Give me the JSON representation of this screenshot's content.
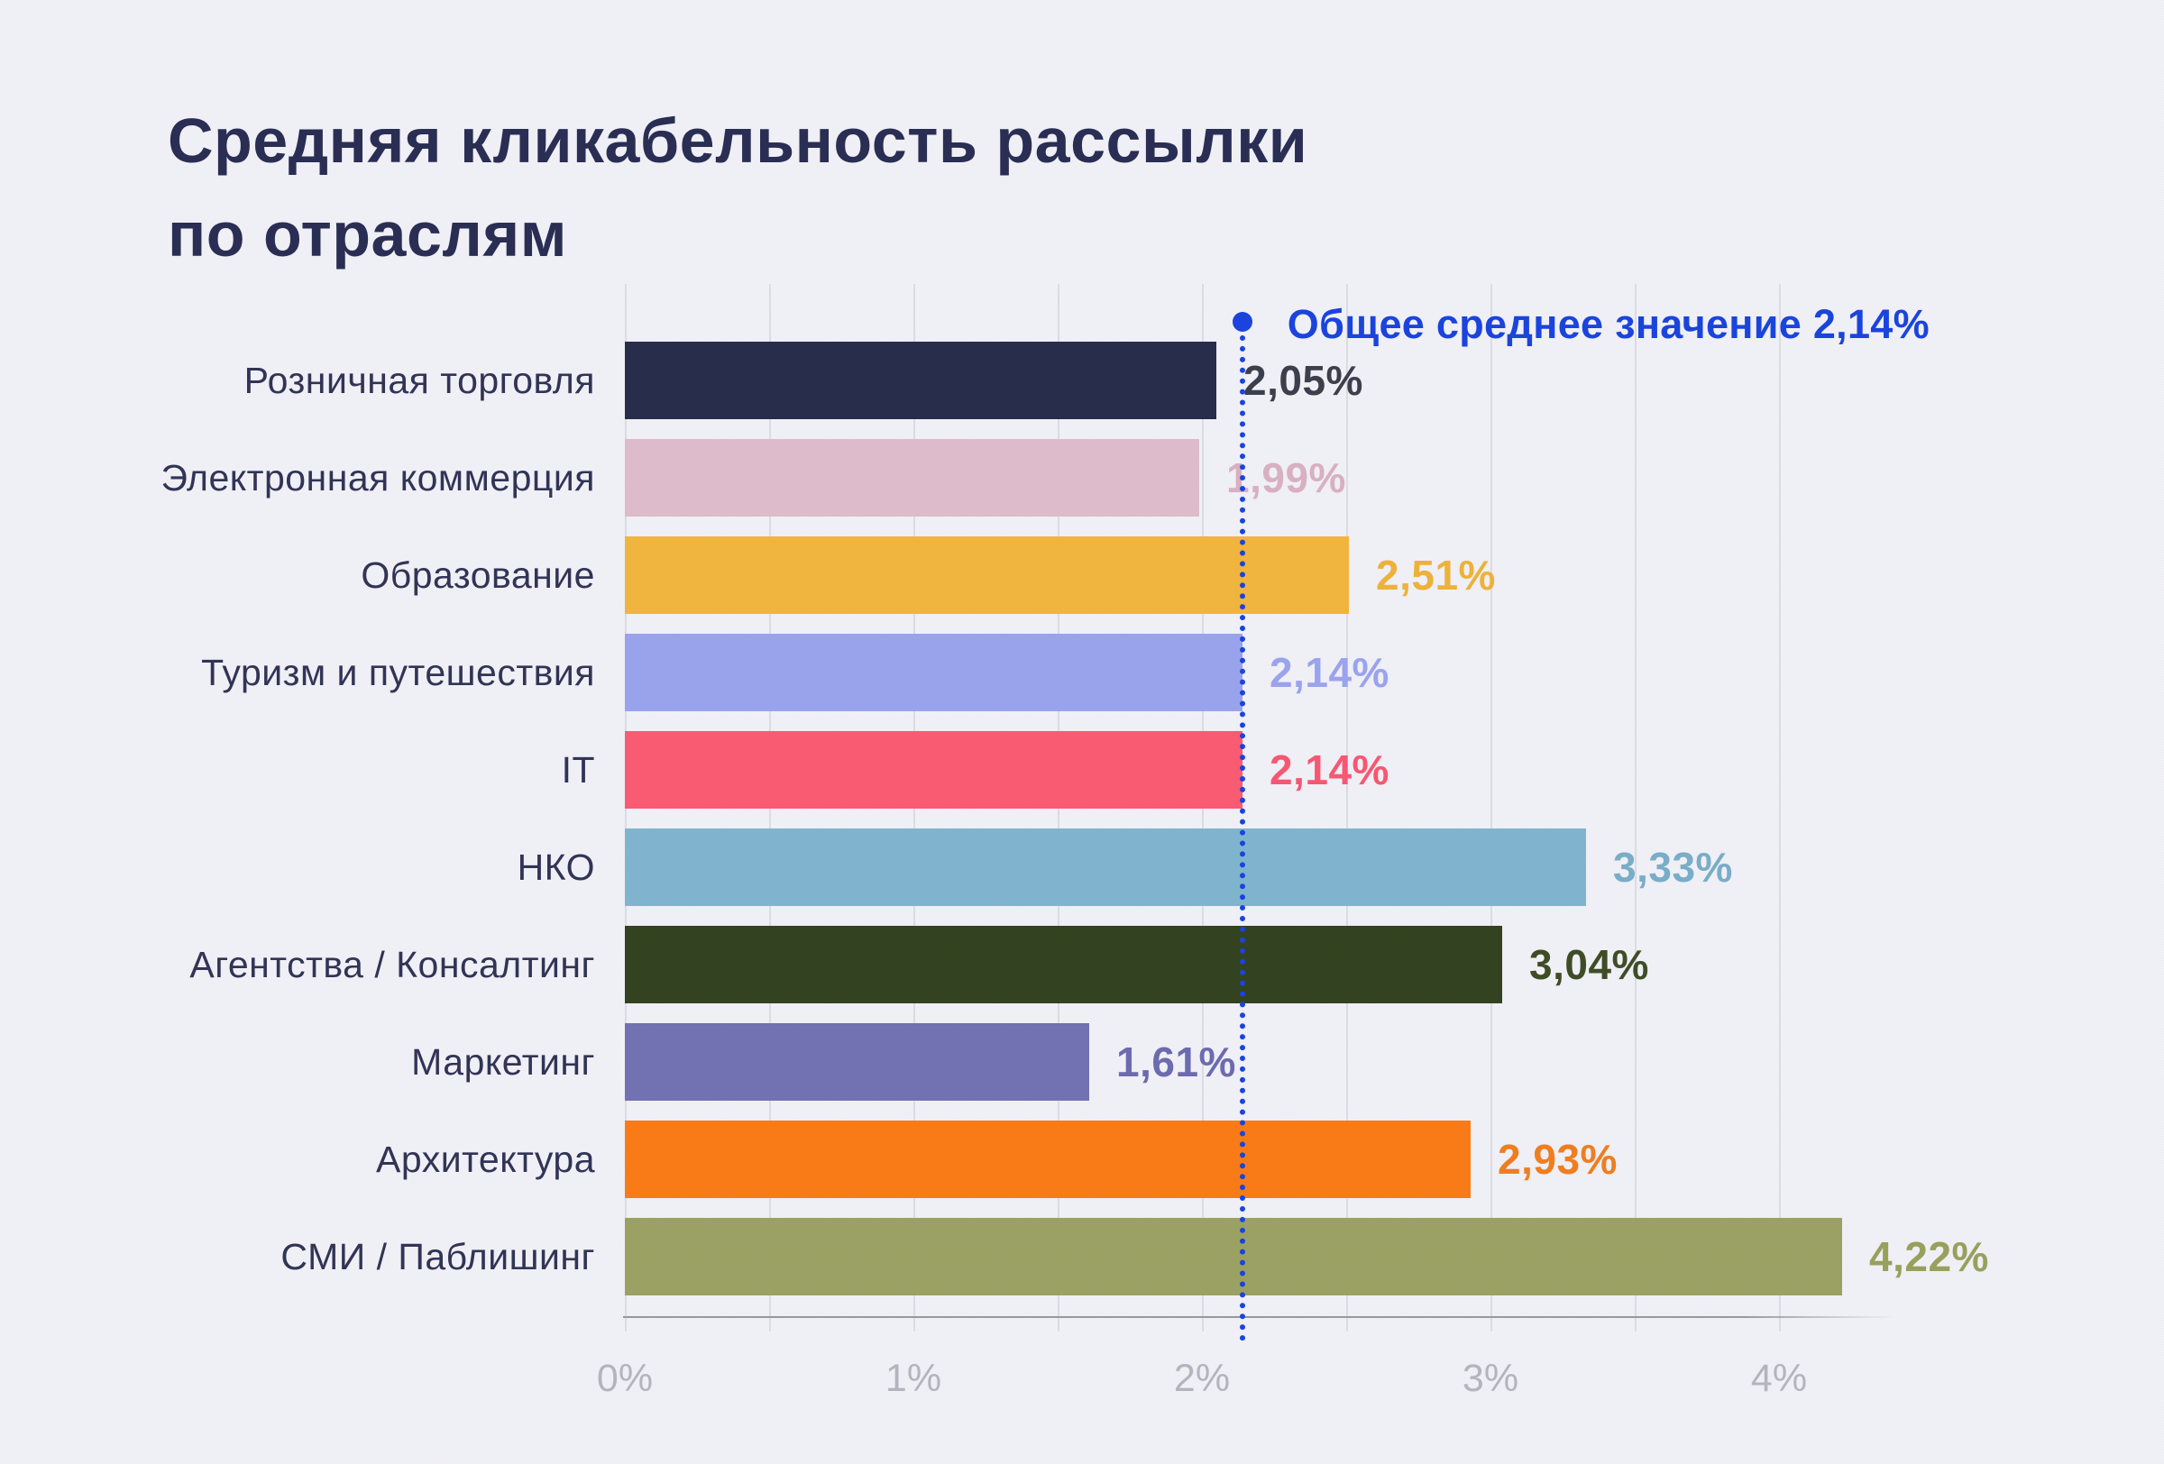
{
  "title": {
    "line1": "Средняя кликабельность рассылки",
    "line2": "по отраслям"
  },
  "legend": {
    "label": "Общее среднее значение 2,14%"
  },
  "colors": {
    "background": "#f1f1f7",
    "title_text": "#282c52",
    "category_label": "#2f3254",
    "gridline": "#dcdce6",
    "axis_line": "#97979f",
    "tick_label": "#b5b5c0",
    "average_blue": "#1742dd"
  },
  "chart_data": {
    "type": "bar",
    "orientation": "horizontal",
    "title": "Средняя кликабельность рассылки по отраслям",
    "xlabel": "",
    "ylabel": "",
    "xlim": [
      0,
      4.4
    ],
    "gridline_step": 0.5,
    "grid": true,
    "x_ticks": [
      "0%",
      "1%",
      "2%",
      "3%",
      "4%"
    ],
    "x_tick_values": [
      0,
      1,
      2,
      3,
      4
    ],
    "categories": [
      "Розничная торговля",
      "Электронная коммерция",
      "Образование",
      "Туризм и путешествия",
      "IT",
      "НКО",
      "Агентства / Консалтинг",
      "Маркетинг",
      "Архитектура",
      "СМИ / Паблишинг"
    ],
    "values": [
      2.05,
      1.99,
      2.51,
      2.14,
      2.14,
      3.33,
      3.04,
      1.61,
      2.93,
      4.22
    ],
    "value_labels": [
      "2,05%",
      "1,99%",
      "2,51%",
      "2,14%",
      "2,14%",
      "3,33%",
      "3,04%",
      "1,61%",
      "2,93%",
      "4,22%"
    ],
    "bar_colors": [
      "#272b4a",
      "#debcca",
      "#f2b63c",
      "#99a3ee",
      "#fa5a71",
      "#7fb5ce",
      "#31401d",
      "#7170b3",
      "#fa7a15",
      "#9ba162"
    ],
    "value_label_colors": [
      "#3a3d49",
      "#d9b0c1",
      "#eeb238",
      "#9aa3ef",
      "#f95670",
      "#78adc8",
      "#3d4b24",
      "#6b6ab0",
      "#f07d1e",
      "#99a05a"
    ],
    "average_line": {
      "value": 2.14,
      "label": "Общее среднее значение 2,14%",
      "style": "dotted",
      "color": "#1742dd"
    },
    "legend_position": "top-right"
  }
}
